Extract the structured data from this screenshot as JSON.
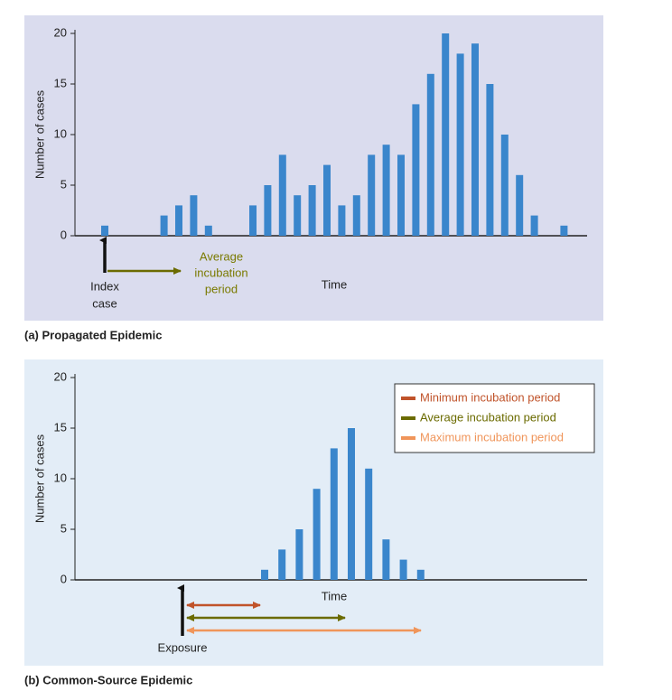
{
  "chart_data": [
    {
      "type": "bar",
      "caption": "(a) Propagated Epidemic",
      "y_label": "Number of cases",
      "x_label": "Time",
      "categories": [
        null,
        null,
        null,
        null,
        null,
        null,
        null,
        null,
        null,
        null,
        null,
        null,
        null,
        null,
        null,
        null,
        null,
        null,
        null,
        null,
        null,
        null,
        null,
        null,
        null,
        null,
        null,
        null,
        null,
        null,
        null,
        null
      ],
      "values": [
        1,
        null,
        null,
        null,
        2,
        3,
        4,
        1,
        null,
        null,
        3,
        5,
        8,
        4,
        5,
        7,
        3,
        4,
        8,
        9,
        8,
        13,
        16,
        20,
        18,
        19,
        15,
        10,
        6,
        2,
        null,
        1
      ],
      "color": "#3a86cc",
      "ylim": [
        0,
        20
      ],
      "yticks": [
        0,
        5,
        10,
        15,
        20
      ],
      "annotations": {
        "index_case": [
          "Index",
          "case"
        ],
        "average_incubation": [
          "Average",
          "incubation",
          "period"
        ]
      }
    },
    {
      "type": "bar",
      "caption": "(b) Common-Source Epidemic",
      "y_label": "Number of cases",
      "x_label": "Time",
      "categories": [
        null,
        null,
        null,
        null,
        null,
        null,
        null,
        null,
        null,
        null
      ],
      "values": [
        1,
        3,
        5,
        9,
        13,
        15,
        11,
        4,
        2,
        1
      ],
      "color": "#3a86cc",
      "ylim": [
        0,
        20
      ],
      "yticks": [
        0,
        5,
        10,
        15,
        20
      ],
      "legend": [
        {
          "name": "Minimum incubation period",
          "color": "#c0532a"
        },
        {
          "name": "Average incubation period",
          "color": "#6b6b00"
        },
        {
          "name": "Maximum incubation period",
          "color": "#f0955a"
        }
      ],
      "annotations": {
        "exposure": "Exposure"
      }
    }
  ]
}
